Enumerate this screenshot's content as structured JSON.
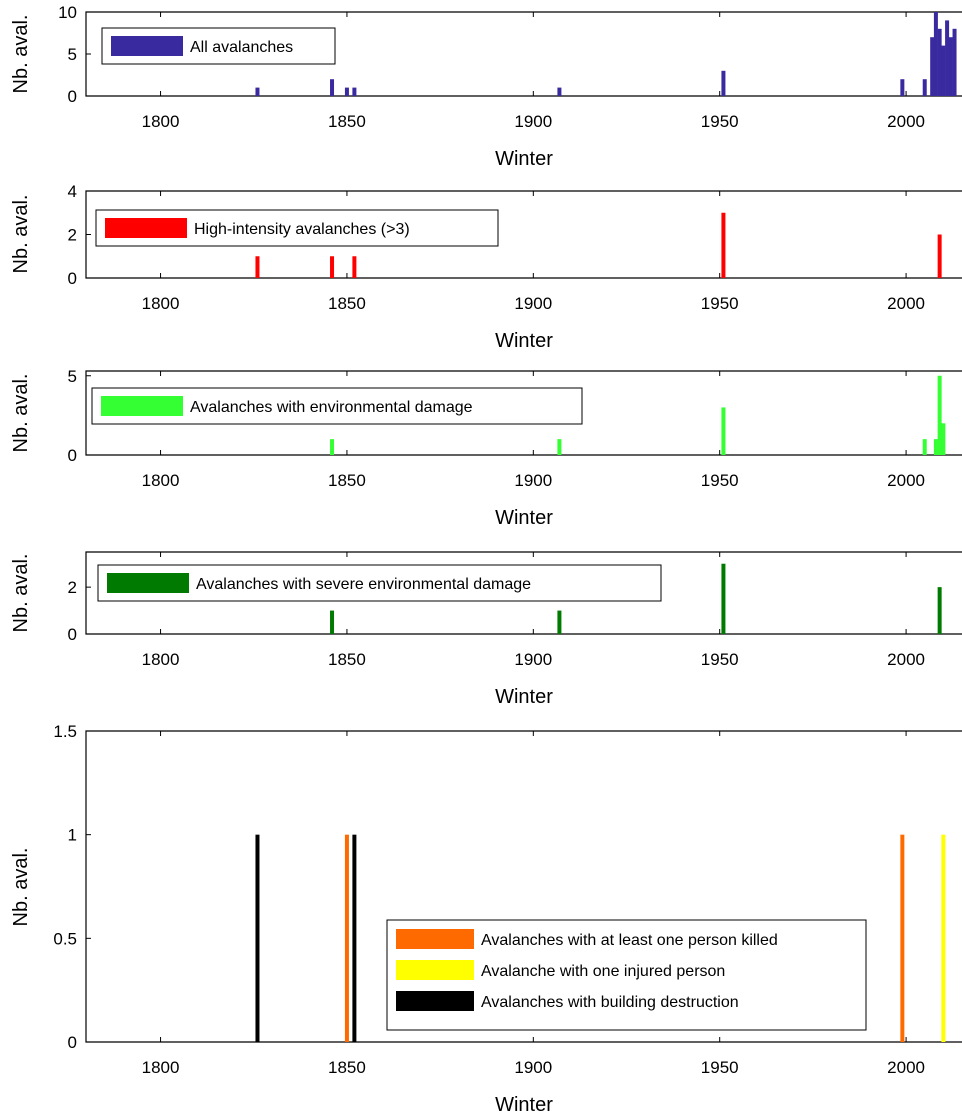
{
  "chart_data": [
    {
      "type": "bar",
      "xlabel": "Winter",
      "ylabel": "Nb. aval.",
      "xlim": [
        1780,
        2015
      ],
      "ylim": [
        0,
        10
      ],
      "xticks": [
        "1800",
        "1850",
        "1900",
        "1950",
        "2000"
      ],
      "yticks": [
        "0",
        "5",
        "10"
      ],
      "legend_location": "top-left",
      "series": [
        {
          "name": "All avalanches",
          "color": "#3a2aa0",
          "points": [
            [
              1826,
              1
            ],
            [
              1846,
              2
            ],
            [
              1850,
              1
            ],
            [
              1852,
              1
            ],
            [
              1907,
              1
            ],
            [
              1951,
              3
            ],
            [
              1999,
              2
            ],
            [
              2005,
              2
            ],
            [
              2007,
              7
            ],
            [
              2008,
              10
            ],
            [
              2009,
              8
            ],
            [
              2010,
              6
            ],
            [
              2011,
              9
            ],
            [
              2012,
              7
            ],
            [
              2013,
              8
            ]
          ]
        }
      ]
    },
    {
      "type": "bar",
      "xlabel": "Winter",
      "ylabel": "Nb. aval.",
      "xlim": [
        1780,
        2015
      ],
      "ylim": [
        0,
        4
      ],
      "xticks": [
        "1800",
        "1850",
        "1900",
        "1950",
        "2000"
      ],
      "yticks": [
        "0",
        "2",
        "4"
      ],
      "legend_location": "top-left",
      "series": [
        {
          "name": "High-intensity avalanches (>3)",
          "color": "#ff0000",
          "points": [
            [
              1826,
              1
            ],
            [
              1846,
              1
            ],
            [
              1852,
              1
            ],
            [
              1951,
              3
            ],
            [
              2009,
              2
            ]
          ]
        }
      ]
    },
    {
      "type": "bar",
      "xlabel": "Winter",
      "ylabel": "Nb. aval.",
      "xlim": [
        1780,
        2015
      ],
      "ylim": [
        0,
        5.3
      ],
      "xticks": [
        "1800",
        "1850",
        "1900",
        "1950",
        "2000"
      ],
      "yticks": [
        "0",
        "5"
      ],
      "legend_location": "top-left",
      "series": [
        {
          "name": "Avalanches with environmental damage",
          "color": "#33ff33",
          "points": [
            [
              1846,
              1
            ],
            [
              1907,
              1
            ],
            [
              1951,
              3
            ],
            [
              2005,
              1
            ],
            [
              2008,
              1
            ],
            [
              2009,
              5
            ],
            [
              2010,
              2
            ]
          ]
        }
      ]
    },
    {
      "type": "bar",
      "xlabel": "Winter",
      "ylabel": "Nb. aval.",
      "xlim": [
        1780,
        2015
      ],
      "ylim": [
        0,
        3.5
      ],
      "xticks": [
        "1800",
        "1850",
        "1900",
        "1950",
        "2000"
      ],
      "yticks": [
        "0",
        "2"
      ],
      "legend_location": "top-left",
      "series": [
        {
          "name": "Avalanches with severe environmental damage",
          "color": "#007a00",
          "points": [
            [
              1846,
              1
            ],
            [
              1907,
              1
            ],
            [
              1951,
              3
            ],
            [
              2009,
              2
            ]
          ]
        }
      ]
    },
    {
      "type": "bar",
      "xlabel": "Winter",
      "ylabel": "Nb. aval.",
      "xlim": [
        1780,
        2015
      ],
      "ylim": [
        0,
        1.5
      ],
      "xticks": [
        "1800",
        "1850",
        "1900",
        "1950",
        "2000"
      ],
      "yticks": [
        "0",
        "0.5",
        "1",
        "1.5"
      ],
      "legend_location": "bottom-right",
      "series": [
        {
          "name": "Avalanches with at least one person killed",
          "color": "#ff6a00",
          "points": [
            [
              1850,
              1
            ],
            [
              1999,
              1
            ]
          ]
        },
        {
          "name": "Avalanche with one injured person",
          "color": "#ffff00",
          "points": [
            [
              2010,
              1
            ]
          ]
        },
        {
          "name": "Avalanches with building destruction",
          "color": "#000000",
          "points": [
            [
              1826,
              1
            ],
            [
              1852,
              1
            ]
          ]
        }
      ]
    }
  ]
}
